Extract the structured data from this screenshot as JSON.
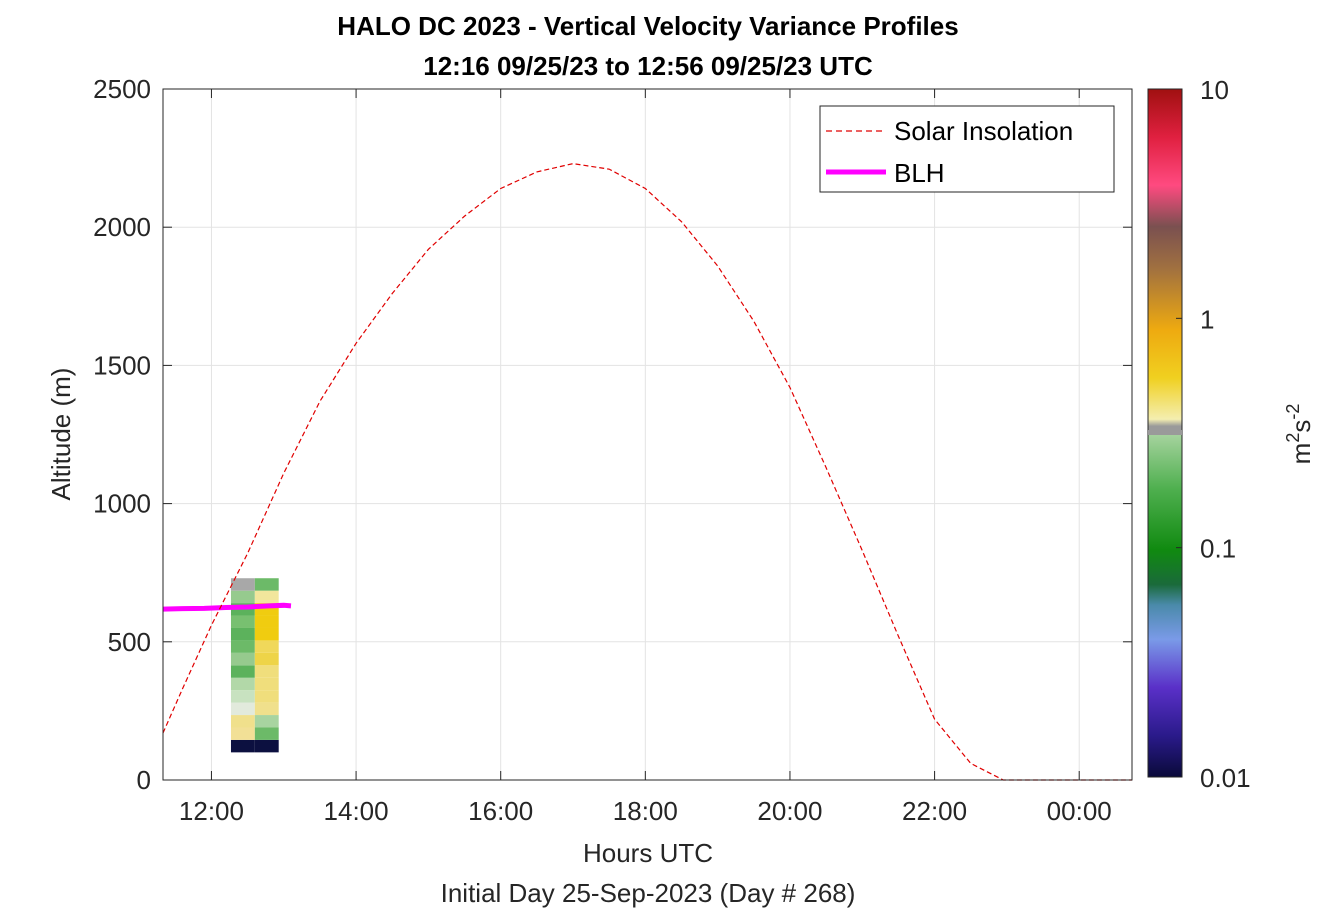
{
  "chart_data": {
    "type": "heatmap",
    "title": "HALO DC 2023 - Vertical Velocity Variance Profiles",
    "subtitle": "12:16 09/25/23 to 12:56 09/25/23  UTC",
    "xlabel": "Hours UTC",
    "xlabel2": "Initial Day 25-Sep-2023 (Day # 268)",
    "ylabel": "Altitude (m)",
    "xlim_hours": [
      11.33,
      24.73
    ],
    "ylim": [
      0,
      2500
    ],
    "x_ticks": [
      {
        "value": 12,
        "label": "12:00"
      },
      {
        "value": 14,
        "label": "14:00"
      },
      {
        "value": 16,
        "label": "16:00"
      },
      {
        "value": 18,
        "label": "18:00"
      },
      {
        "value": 20,
        "label": "20:00"
      },
      {
        "value": 22,
        "label": "22:00"
      },
      {
        "value": 24,
        "label": "00:00"
      }
    ],
    "y_ticks": [
      {
        "value": 0,
        "label": "0"
      },
      {
        "value": 500,
        "label": "500"
      },
      {
        "value": 1000,
        "label": "1000"
      },
      {
        "value": 1500,
        "label": "1500"
      },
      {
        "value": 2000,
        "label": "2000"
      },
      {
        "value": 2500,
        "label": "2500"
      }
    ],
    "grid": true,
    "legend": {
      "placement": "top-right",
      "entries": [
        {
          "name": "Solar Insolation",
          "color": "#e00000",
          "style": "dashed"
        },
        {
          "name": "BLH",
          "color": "#ff00ff",
          "style": "solid"
        }
      ]
    },
    "colorbar": {
      "label_base": "m",
      "label_exp1": "2",
      "label_mid": "s",
      "label_exp2": "-2",
      "scale": "log",
      "range": [
        0.01,
        10
      ],
      "ticks": [
        {
          "value": 0.01,
          "label": "0.01"
        },
        {
          "value": 0.1,
          "label": "0.1"
        },
        {
          "value": 1,
          "label": "1"
        },
        {
          "value": 10,
          "label": "10"
        }
      ]
    },
    "heatmap": {
      "columns": [
        {
          "x_start": 12.27,
          "x_end": 12.6
        },
        {
          "x_start": 12.6,
          "x_end": 12.93
        }
      ],
      "cells": [
        {
          "col": 0,
          "y0": 100,
          "y1": 145,
          "color": "#0c1040"
        },
        {
          "col": 1,
          "y0": 100,
          "y1": 145,
          "color": "#0c1040"
        },
        {
          "col": 0,
          "y0": 145,
          "y1": 190,
          "color": "#f2e096"
        },
        {
          "col": 0,
          "y0": 190,
          "y1": 235,
          "color": "#f0e08c"
        },
        {
          "col": 0,
          "y0": 235,
          "y1": 280,
          "color": "#e2eadc"
        },
        {
          "col": 0,
          "y0": 280,
          "y1": 325,
          "color": "#c8e2c0"
        },
        {
          "col": 0,
          "y0": 325,
          "y1": 370,
          "color": "#b2d8a8"
        },
        {
          "col": 0,
          "y0": 370,
          "y1": 415,
          "color": "#5cb25c"
        },
        {
          "col": 0,
          "y0": 415,
          "y1": 460,
          "color": "#96ca8e"
        },
        {
          "col": 0,
          "y0": 460,
          "y1": 505,
          "color": "#6cba68"
        },
        {
          "col": 0,
          "y0": 505,
          "y1": 550,
          "color": "#5cb25c"
        },
        {
          "col": 0,
          "y0": 550,
          "y1": 595,
          "color": "#78c070"
        },
        {
          "col": 0,
          "y0": 595,
          "y1": 640,
          "color": "#5cb25c"
        },
        {
          "col": 0,
          "y0": 640,
          "y1": 685,
          "color": "#96ca8e"
        },
        {
          "col": 0,
          "y0": 685,
          "y1": 730,
          "color": "#a8a8a8"
        },
        {
          "col": 1,
          "y0": 145,
          "y1": 190,
          "color": "#6cba68"
        },
        {
          "col": 1,
          "y0": 190,
          "y1": 235,
          "color": "#a8d4a0"
        },
        {
          "col": 1,
          "y0": 235,
          "y1": 280,
          "color": "#f0e08c"
        },
        {
          "col": 1,
          "y0": 280,
          "y1": 325,
          "color": "#f0de7c"
        },
        {
          "col": 1,
          "y0": 325,
          "y1": 370,
          "color": "#f0de7c"
        },
        {
          "col": 1,
          "y0": 370,
          "y1": 415,
          "color": "#f0de7c"
        },
        {
          "col": 1,
          "y0": 415,
          "y1": 460,
          "color": "#eed448"
        },
        {
          "col": 1,
          "y0": 460,
          "y1": 505,
          "color": "#f0d85a"
        },
        {
          "col": 1,
          "y0": 505,
          "y1": 550,
          "color": "#f0cc10"
        },
        {
          "col": 1,
          "y0": 550,
          "y1": 595,
          "color": "#f0cc10"
        },
        {
          "col": 1,
          "y0": 595,
          "y1": 640,
          "color": "#f0cc10"
        },
        {
          "col": 1,
          "y0": 640,
          "y1": 685,
          "color": "#f2e69c"
        },
        {
          "col": 1,
          "y0": 685,
          "y1": 730,
          "color": "#6cba68"
        }
      ]
    },
    "series": [
      {
        "name": "BLH",
        "x": [
          11.33,
          11.6,
          11.9,
          12.2,
          12.5,
          12.8,
          13.0,
          13.1
        ],
        "y": [
          618,
          620,
          621,
          624,
          626,
          630,
          632,
          630
        ]
      },
      {
        "name": "Solar Insolation",
        "x": [
          11.33,
          11.6,
          12.0,
          12.5,
          13.0,
          13.5,
          14.0,
          14.5,
          15.0,
          15.5,
          16.0,
          16.5,
          17.0,
          17.5,
          18.0,
          18.5,
          19.0,
          19.5,
          20.0,
          20.5,
          21.0,
          21.5,
          22.0,
          22.5,
          22.95,
          23.5,
          24.0,
          24.73
        ],
        "y": [
          170,
          330,
          560,
          820,
          1110,
          1370,
          1580,
          1760,
          1920,
          2040,
          2140,
          2200,
          2230,
          2210,
          2140,
          2020,
          1860,
          1660,
          1420,
          1130,
          830,
          520,
          220,
          60,
          0,
          0,
          0,
          0
        ]
      }
    ]
  },
  "colors": {
    "solar": "#e00000",
    "blh": "#ff00ff",
    "grid": "#e3e3e3",
    "axis": "#262626"
  }
}
